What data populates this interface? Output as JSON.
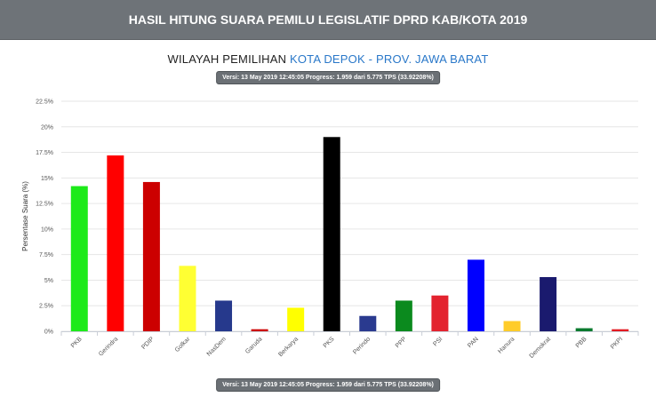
{
  "header": {
    "title": "HASIL HITUNG SUARA PEMILU LEGISLATIF DPRD KAB/KOTA 2019"
  },
  "subtitle": {
    "prefix": "WILAYAH PEMILIHAN",
    "region": "KOTA DEPOK - PROV. JAWA BARAT"
  },
  "version_badge": "Versi: 13 May 2019 12:45:05 Progress: 1.959 dari 5.775 TPS (33.92208%)",
  "version_badge_bottom": "Versi: 13 May 2019 12:45:05 Progress: 1.959 dari 5.775 TPS (33.92208%)",
  "chart_data": {
    "type": "bar",
    "ylabel": "Persentase Suara (%)",
    "ylim": [
      0,
      22.5
    ],
    "yticks": [
      0,
      2.5,
      5,
      7.5,
      10,
      12.5,
      15,
      17.5,
      20,
      22.5
    ],
    "ytick_labels": [
      "0%",
      "2.5%",
      "5%",
      "7.5%",
      "10%",
      "12.5%",
      "15%",
      "17.5%",
      "20%",
      "22.5%"
    ],
    "grid": true,
    "categories": [
      "PKB",
      "Gerindra",
      "PDIP",
      "Golkar",
      "NasDem",
      "Garuda",
      "Berkarya",
      "PKS",
      "Perindo",
      "PPP",
      "PSI",
      "PAN",
      "Hanura",
      "Demokrat",
      "PBB",
      "PKPI"
    ],
    "values": [
      14.2,
      17.2,
      14.6,
      6.4,
      3.0,
      0.2,
      2.3,
      19.0,
      1.5,
      3.0,
      3.5,
      7.0,
      1.0,
      5.3,
      0.3,
      0.2
    ],
    "colors": [
      "#1dea1a",
      "#ff0000",
      "#cc0000",
      "#ffff33",
      "#26398c",
      "#cc0000",
      "#ffff00",
      "#000000",
      "#2a3a8f",
      "#0b8a1e",
      "#e3232f",
      "#0000ff",
      "#ffcc29",
      "#1a1a6e",
      "#0a7a2e",
      "#e31b23"
    ]
  }
}
